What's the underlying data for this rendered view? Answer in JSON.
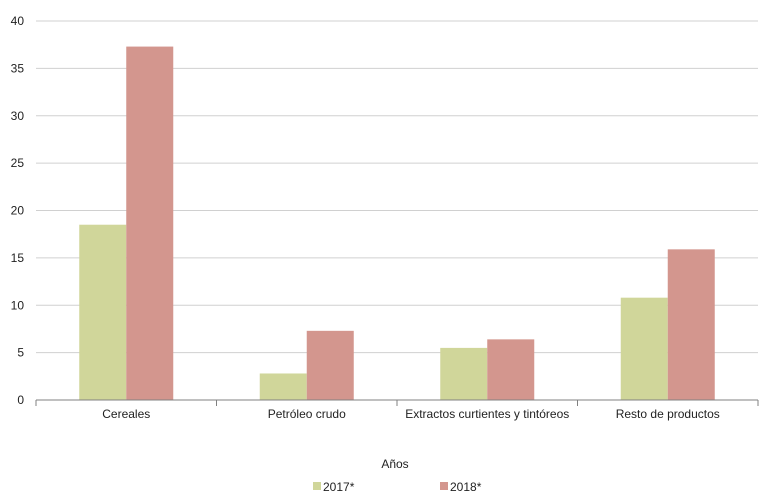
{
  "chart_data": {
    "type": "bar",
    "title": "",
    "xlabel": "Años",
    "ylabel": "",
    "categories": [
      "Cereales",
      "Petróleo crudo",
      "Extractos curtientes y tintóreos",
      "Resto de productos"
    ],
    "series": [
      {
        "name": "2017*",
        "color": "#d0d69a",
        "values": [
          18.5,
          2.8,
          5.5,
          10.8
        ]
      },
      {
        "name": "2018*",
        "color": "#d3968e",
        "values": [
          37.3,
          7.3,
          6.4,
          15.9
        ]
      }
    ],
    "ylim": [
      0,
      40
    ],
    "yticks": [
      0,
      5,
      10,
      15,
      20,
      25,
      30,
      35,
      40
    ],
    "grid": true,
    "legend_position": "bottom-center"
  }
}
